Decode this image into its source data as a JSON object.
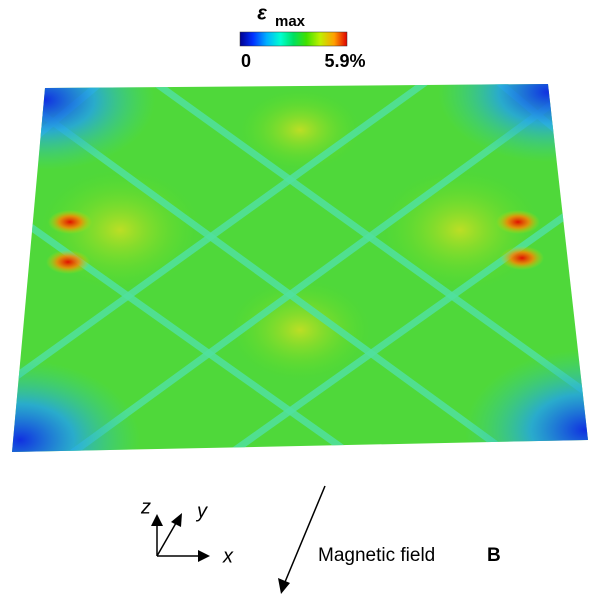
{
  "colorbar": {
    "symbol": "ε",
    "subscript": "max",
    "min_label": "0",
    "max_label": "5.9%"
  },
  "axes": {
    "z": "z",
    "y": "y",
    "x": "x"
  },
  "field": {
    "label": "Magnetic field",
    "symbol": "B"
  }
}
